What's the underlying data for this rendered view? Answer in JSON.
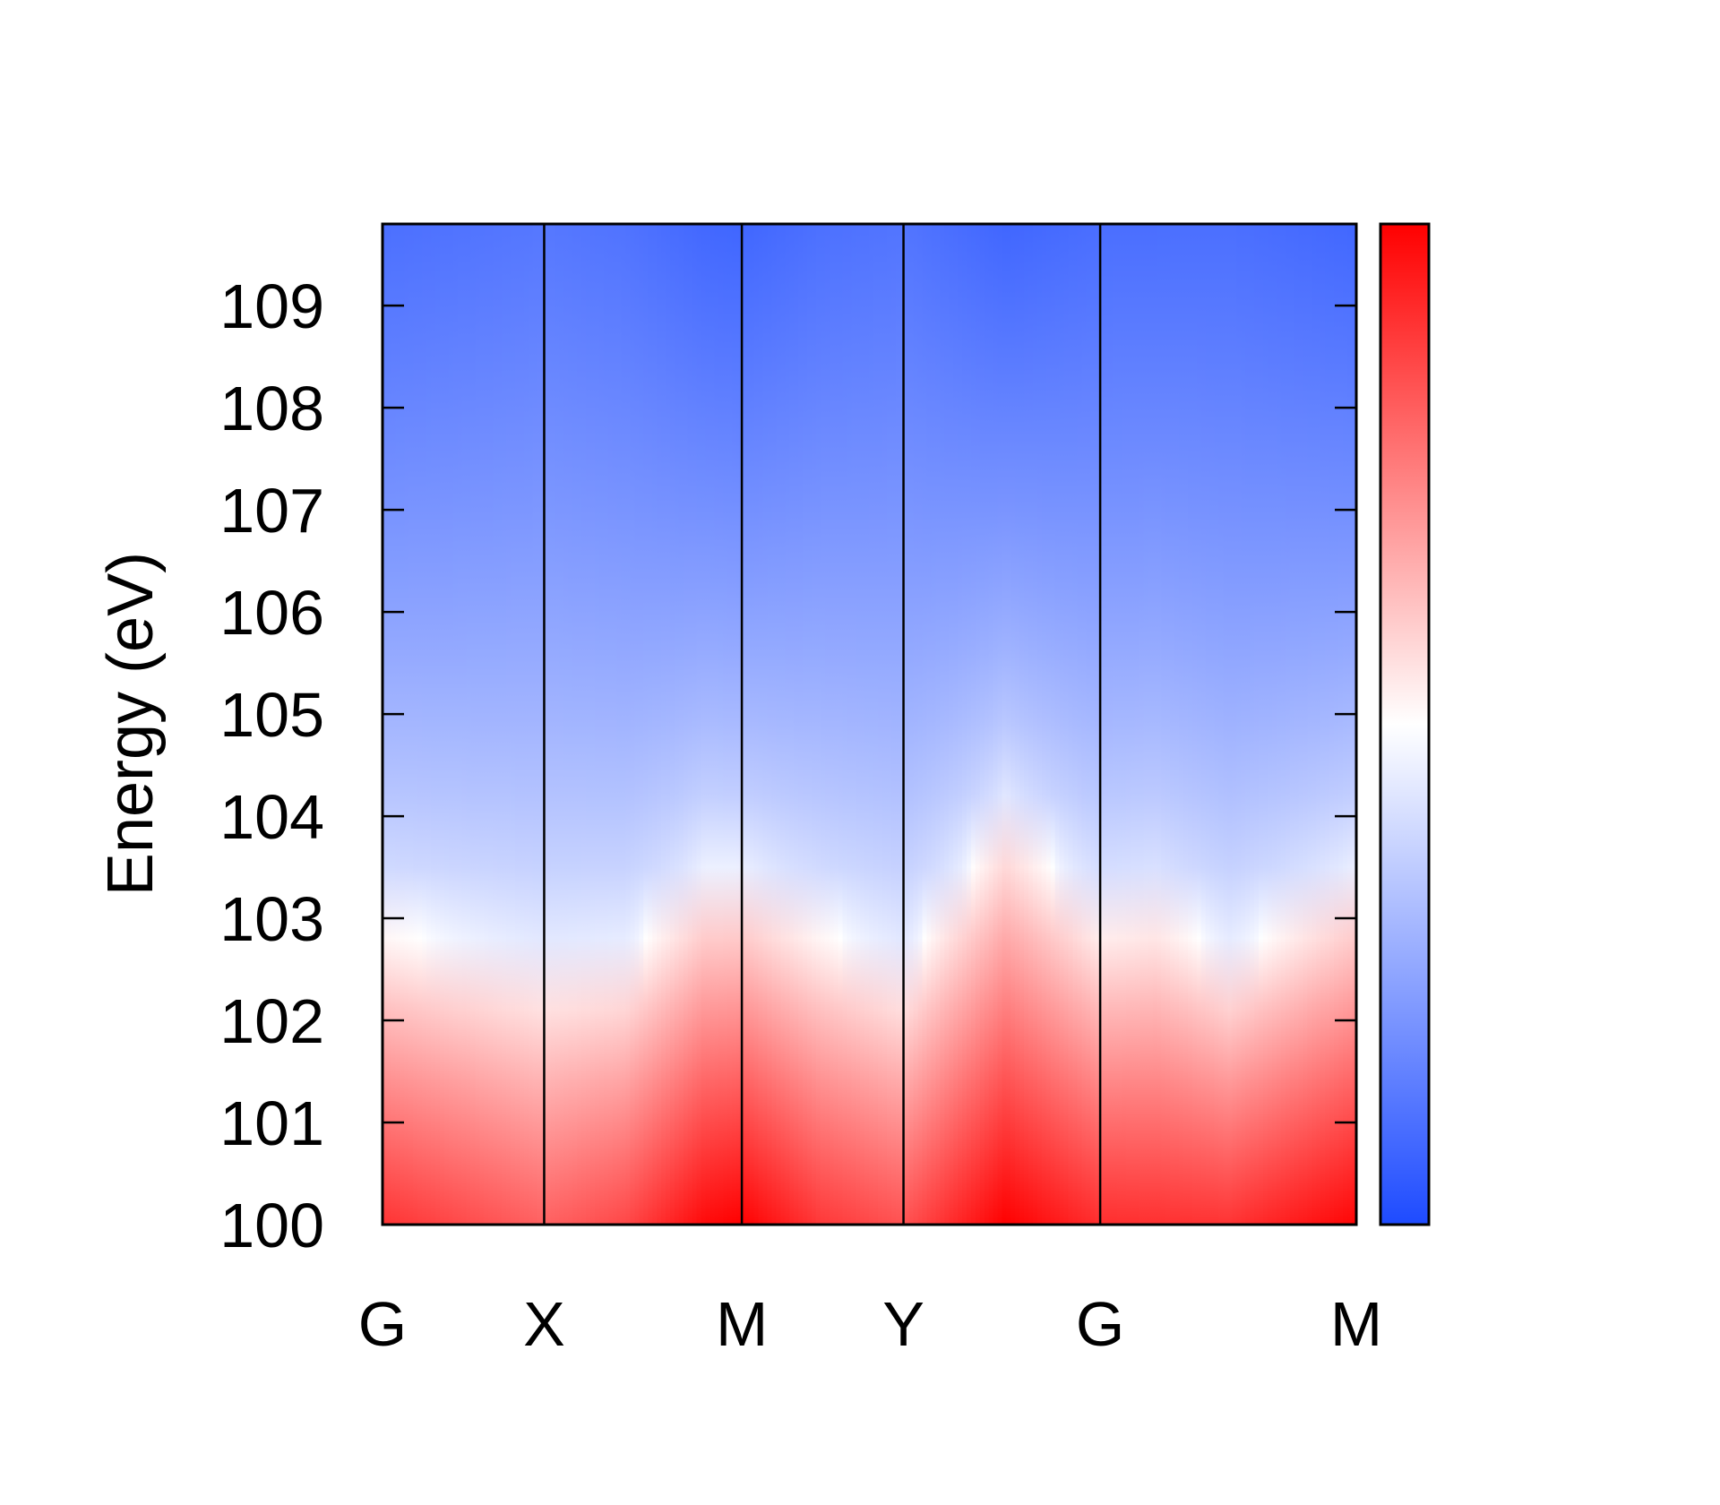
{
  "chart_data": {
    "type": "heatmap",
    "title": "",
    "xlabel": "",
    "ylabel": "Energy (eV)",
    "ylim": [
      100,
      109.8
    ],
    "y_ticks": [
      "100",
      "101",
      "102",
      "103",
      "104",
      "105",
      "106",
      "107",
      "108",
      "109"
    ],
    "x_ticks": [
      {
        "label": "G",
        "k": 0.0
      },
      {
        "label": "X",
        "k": 0.166
      },
      {
        "label": "M",
        "k": 0.369
      },
      {
        "label": "Y",
        "k": 0.535
      },
      {
        "label": "G",
        "k": 0.737
      },
      {
        "label": "M",
        "k": 1.0
      }
    ],
    "xlim": [
      0,
      1
    ],
    "edge_energy_eV": {
      "k": [
        0.0,
        0.166,
        0.25,
        0.33,
        0.369,
        0.45,
        0.535,
        0.64,
        0.737,
        0.795,
        0.87,
        1.0
      ],
      "values": [
        102.9,
        102.5,
        102.6,
        103.4,
        103.4,
        102.9,
        102.5,
        104.0,
        103.0,
        103.1,
        102.6,
        103.4
      ]
    },
    "peak_intensity": {
      "k": [
        0.0,
        0.166,
        0.25,
        0.33,
        0.369,
        0.45,
        0.535,
        0.64,
        0.737,
        0.87,
        1.0
      ],
      "values": [
        0.8,
        0.62,
        0.72,
        0.96,
        1.0,
        0.78,
        0.68,
        1.0,
        0.82,
        0.8,
        0.98
      ]
    },
    "colorbar": {
      "low_color": "#1e4bff",
      "mid_color": "#ffffff",
      "high_color": "#ff0000",
      "ticks": []
    },
    "grid": false,
    "vertical_lines_at_ticks": true
  }
}
